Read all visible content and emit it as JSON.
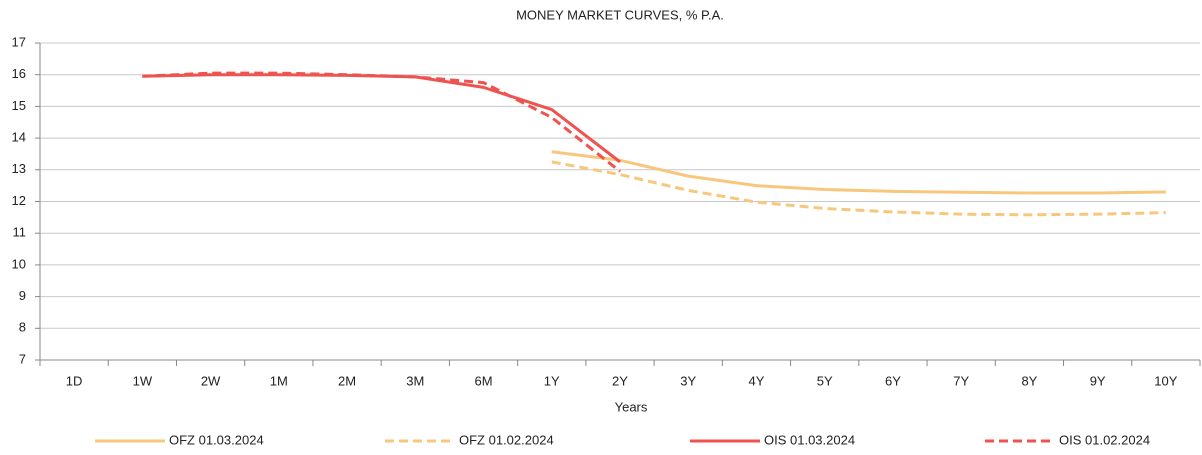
{
  "chart_data": {
    "type": "line",
    "title": "MONEY MARKET CURVES, % P.A.",
    "x_label": "Years",
    "categories": [
      "1D",
      "1W",
      "2W",
      "1M",
      "2M",
      "3M",
      "6M",
      "1Y",
      "2Y",
      "3Y",
      "4Y",
      "5Y",
      "6Y",
      "7Y",
      "8Y",
      "9Y",
      "10Y"
    ],
    "ylim": [
      7,
      17
    ],
    "yticks": [
      7,
      8,
      9,
      10,
      11,
      12,
      13,
      14,
      15,
      16,
      17
    ],
    "grid": true,
    "legend": "bottom",
    "series": [
      {
        "name": "OFZ 01.03.2024",
        "color": "#f8c77e",
        "style": "solid",
        "values": [
          null,
          null,
          null,
          null,
          null,
          null,
          null,
          13.57,
          13.3,
          12.8,
          12.5,
          12.38,
          12.32,
          12.29,
          12.27,
          12.27,
          12.3
        ]
      },
      {
        "name": "OFZ 01.02.2024",
        "color": "#f8c77e",
        "style": "dashed",
        "values": [
          null,
          null,
          null,
          null,
          null,
          null,
          null,
          13.25,
          12.85,
          12.35,
          11.98,
          11.78,
          11.67,
          11.6,
          11.58,
          11.6,
          11.65
        ]
      },
      {
        "name": "OIS 01.03.2024",
        "color": "#ef5350",
        "style": "solid",
        "values": [
          null,
          15.95,
          16.0,
          16.0,
          15.98,
          15.93,
          15.6,
          14.9,
          13.25,
          null,
          null,
          null,
          null,
          null,
          null,
          null,
          null
        ]
      },
      {
        "name": "OIS 01.02.2024",
        "color": "#ef5350",
        "style": "dashed",
        "values": [
          null,
          15.95,
          16.05,
          16.05,
          16.0,
          15.93,
          15.75,
          14.65,
          12.95,
          null,
          null,
          null,
          null,
          null,
          null,
          null,
          null
        ]
      }
    ]
  }
}
